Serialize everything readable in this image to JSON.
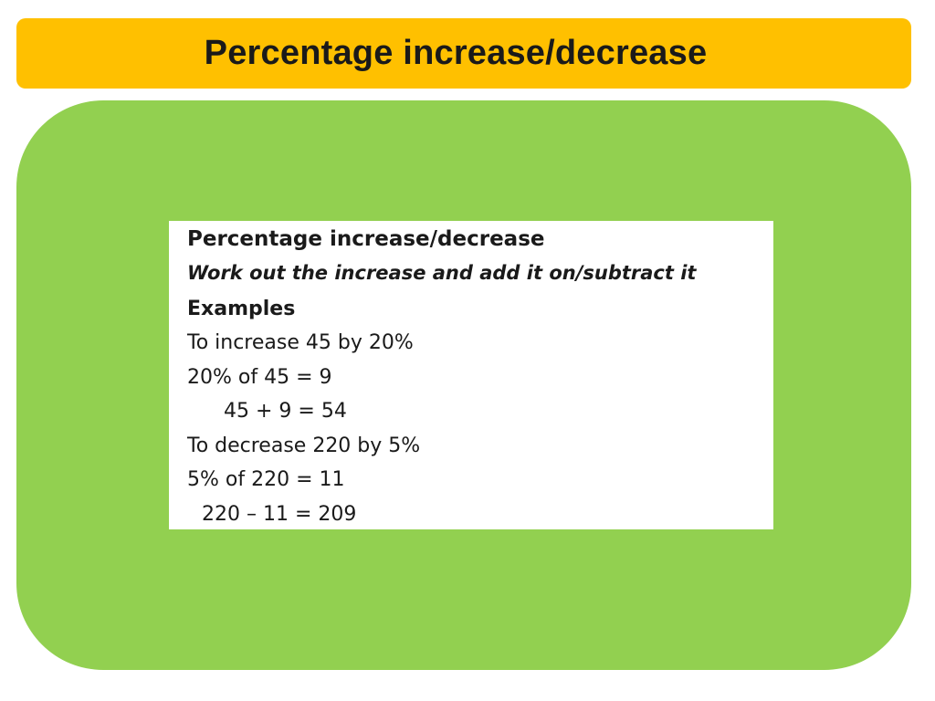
{
  "slide": {
    "title": "Percentage increase/decrease"
  },
  "image_text": {
    "heading": "Percentage increase/decrease",
    "instruction": "Work out the increase and add it on/subtract it",
    "examples_label": "Examples",
    "example1_line1": "To increase 45 by 20%",
    "example1_line2": "20% of 45 = 9",
    "example1_line3": "45 + 9 = 54",
    "example2_line1": "To decrease 220 by 5%",
    "example2_line2": "5% of 220 = 11",
    "example2_line3": "220 – 11 = 209"
  },
  "colors": {
    "title_banner": "#ffc000",
    "content_panel": "#92d050",
    "image_background": "#ffffff"
  }
}
